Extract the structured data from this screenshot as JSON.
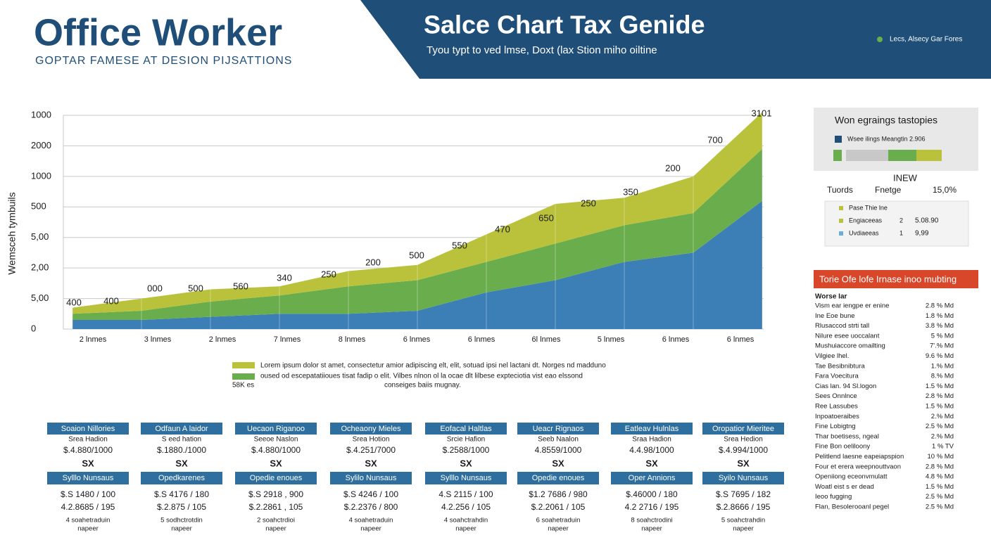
{
  "header": {
    "title": "Office Worker",
    "subtitle": "GOPTAR FAMESE AT DESION PIJSATTIONS",
    "banner_title": "Salce Chart Tax Genide",
    "banner_subtitle": "Tyou typt to ved lmse, Doxt (lax Stion miho oiltine",
    "banner_note": "Lecs, Alsecy Gar Fores"
  },
  "chart_data": {
    "type": "stacked-area",
    "y_label": "Wemsceh tymbuils",
    "categories": [
      "2 lnmes",
      "3 lnmes",
      "2 lnmes",
      "7 lnmes",
      "8 lnmes",
      "6 lnmes",
      "6 lnmes",
      "6l lnmes",
      "5 lnmes",
      "6 lnmes",
      "6 lnmes"
    ],
    "series": [
      {
        "color": "#3b7fb6",
        "values": [
          0.3,
          0.3,
          0.4,
          0.5,
          0.5,
          0.6,
          1.2,
          1.6,
          2.2,
          2.5,
          4.2
        ]
      },
      {
        "name": "oused od escepatatiioues tisat fadip o elit. Vilbes nlnon ol la ocae dlt lilbese expteciotia vist eao elssond",
        "color": "#6aad4c",
        "values": [
          0.2,
          0.3,
          0.5,
          0.6,
          0.9,
          1.0,
          1.0,
          1.2,
          1.2,
          1.3,
          1.7
        ]
      },
      {
        "name": "Lorem ipsum dolor st amet, consectetur amior adipiscing elt, elit, sotuad ipsi nel lactani dt. Norges nd madduno",
        "color": "#b9c23a",
        "values": [
          0.2,
          0.4,
          0.4,
          0.3,
          0.5,
          0.5,
          0.9,
          1.3,
          0.9,
          1.2,
          1.2
        ]
      }
    ],
    "legend_notes": [
      "conseiges baiis mugnay.",
      "58K es"
    ],
    "annotations": [
      "400",
      "400",
      "000",
      "500",
      "560",
      "340",
      "250",
      "200",
      "500",
      "550",
      "470",
      "650",
      "250",
      "350",
      "200",
      "700",
      "3101"
    ],
    "ylim": [
      0,
      7
    ],
    "yticks": [
      0,
      {
        "value": 1,
        "label": "5,00"
      },
      {
        "value": 2,
        "label": "2,00"
      },
      {
        "value": 3,
        "label": "5,00"
      },
      {
        "value": 4,
        "label": "500"
      },
      {
        "value": 5,
        "label": "1000"
      },
      {
        "value": 6,
        "label": "2000"
      },
      {
        "value": 7,
        "label": "1000"
      }
    ],
    "grid": true
  },
  "sidebar": {
    "box_title": "Won egraings tastopies",
    "box_legend": "Wsee ilings Meangtin 2.906",
    "new_label": "INEW",
    "row": [
      "Tuords",
      "Fnetge",
      "15,0%"
    ],
    "mini_legend": [
      {
        "label": "Pase Thie lne",
        "color": "#b9c23a"
      },
      {
        "label": "Engiaceeas",
        "num": "2",
        "value": "5.08.90",
        "color": "#b9c23a"
      },
      {
        "label": "Uvdiaeeas",
        "num": "1",
        "value": "9,99",
        "color": "#6aaed6"
      }
    ],
    "list_title": "Torie Ofe lofe Irnase inoo mubting",
    "list_heading": "Worse Iar",
    "list": [
      [
        "Vism ear iengpe er enine",
        "2.8 % Md"
      ],
      [
        "Ine Eoe bune",
        "1.8 % Md"
      ],
      [
        "Rlusaccod strti tall",
        "3.8 % Md"
      ],
      [
        "Nilure esee uoccalant",
        "5 % Md"
      ],
      [
        "Mushuiaccore omailting",
        "7'.% Md"
      ],
      [
        "Vilgiee lhel.",
        "9.6 % Md"
      ],
      [
        "Tae Besibnibtura",
        "1.% Md"
      ],
      [
        "Fara Voecitura",
        "8.% Md"
      ],
      [
        "Cias lan. 94 Sl.logon",
        "1.5 % Md"
      ],
      [
        "Sees Onnlnce",
        "2.8 % Md"
      ],
      [
        "Ree Lassubes",
        "1.5 % Md"
      ],
      [
        "Inpoatoeraibes",
        "2.% Md"
      ],
      [
        "Fine Lobigtng",
        "2.5 % Md"
      ],
      [
        "Thar boetisess, ngeal",
        "2.% Md"
      ],
      [
        "Fine Bon oeliloony",
        "1 % TV"
      ],
      [
        "Pelitlend laesne eapeiapspion",
        "10 % Md"
      ],
      [
        "Four et erera weepnouttvaon",
        "2.8 % Md"
      ],
      [
        "Openiiong eceonvmulatt",
        "4.8 % Md"
      ],
      [
        "Woatl eist s er dead",
        "1.5 % Md"
      ],
      [
        "Ieoo fugging",
        "2.5 % Md"
      ],
      [
        "Flan, Besolerooanl pegel",
        "2.5 % Md"
      ]
    ]
  },
  "cards": [
    [
      "Soaion Nillories",
      "Srea Hadion",
      "$.4.880/1000",
      "SX",
      "Sylllo Nunsaus",
      "$.S 1480 / 100",
      "4.2.8685 / 195",
      "4 soahetraduin",
      "napeer"
    ],
    [
      "Odfaun A laidor",
      "S eed hation",
      "$.1880./1000",
      "SX",
      "Opedkarenes",
      "$.S 4176 / 180",
      "$.2.875 / 105",
      "5 sodhctrotdin",
      "napeer"
    ],
    [
      "Uecaon Riganoo",
      "Seeoe Naslon",
      "$.4.880/1000",
      "SX",
      "Opedie enoues",
      "$.S 2918 , 900",
      "$.2.2861 , 105",
      "2 soahctrdioi",
      "napeer"
    ],
    [
      "Ocheaony Mieles",
      "Srea Hotion",
      "$.4.251/7000",
      "SX",
      "Sylilo Nunsaus",
      "$.S 4246 / 100",
      "$.2.2376 / 800",
      "4 soahetraduin",
      "napeer"
    ],
    [
      "Eofacal Haltlas",
      "Srcie Hafion",
      "$.2588/1000",
      "SX",
      "Sylllo Nunsaus",
      "4.S 2115 / 100",
      "4.2.256 / 105",
      "4 soahctrahdin",
      "napeer"
    ],
    [
      "Ueacr Rignaos",
      "Seeb Naalon",
      "4.8559/1000",
      "SX",
      "Opedie enoues",
      "$1.2 7686 / 980",
      "$.2.2061 / 105",
      "6 soahetraduin",
      "napeer"
    ],
    [
      "Eatleav Hulnlas",
      "Sraa Hadion",
      "4.4.98/1000",
      "SX",
      "Oper Annions",
      "$.46000 / 180",
      "4.2 2716 / 195",
      "8 soahctrodini",
      "napeer"
    ],
    [
      "Oropatior Mieritee",
      "Srea Hedion",
      "$.4.994/1000",
      "SX",
      "Syilo Nunsaus",
      "$.S 7695 / 182",
      "$.2.8666 / 195",
      "5 soahctrahdin",
      "napeer"
    ]
  ]
}
